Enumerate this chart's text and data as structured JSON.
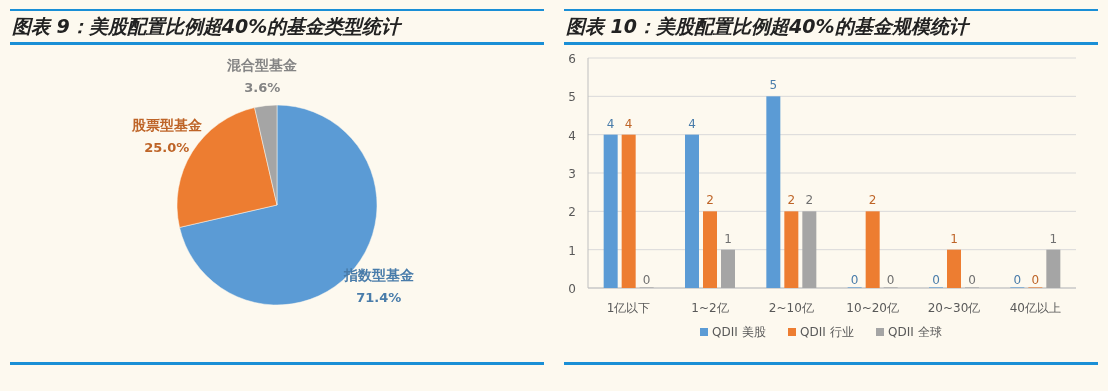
{
  "chart_data": [
    {
      "type": "pie",
      "title": "图表 9：美股配置比例超40%的基金类型统计",
      "categories": [
        "指数型基金",
        "股票型基金",
        "混合型基金"
      ],
      "values": [
        71.4,
        25.0,
        3.6
      ],
      "value_labels": [
        "71.4%",
        "25.0%",
        "3.6%"
      ],
      "colors": [
        "#5b9bd5",
        "#ed7d31",
        "#a5a5a5"
      ]
    },
    {
      "type": "bar",
      "title": "图表 10：美股配置比例超40%的基金规模统计",
      "categories": [
        "1亿以下",
        "1~2亿",
        "2~10亿",
        "10~20亿",
        "20~30亿",
        "40亿以上"
      ],
      "series": [
        {
          "name": "QDII 美股",
          "color": "#5b9bd5",
          "values": [
            4,
            4,
            5,
            0,
            0,
            0
          ]
        },
        {
          "name": "QDII 行业",
          "color": "#ed7d31",
          "values": [
            4,
            2,
            2,
            2,
            1,
            0
          ]
        },
        {
          "name": "QDII 全球",
          "color": "#a5a5a5",
          "values": [
            0,
            1,
            2,
            0,
            0,
            1
          ]
        }
      ],
      "ylim": [
        0,
        6
      ],
      "yticks": [
        0,
        1,
        2,
        3,
        4,
        5,
        6
      ],
      "grid": "y",
      "legend": "bottom",
      "data_labels": true
    }
  ]
}
